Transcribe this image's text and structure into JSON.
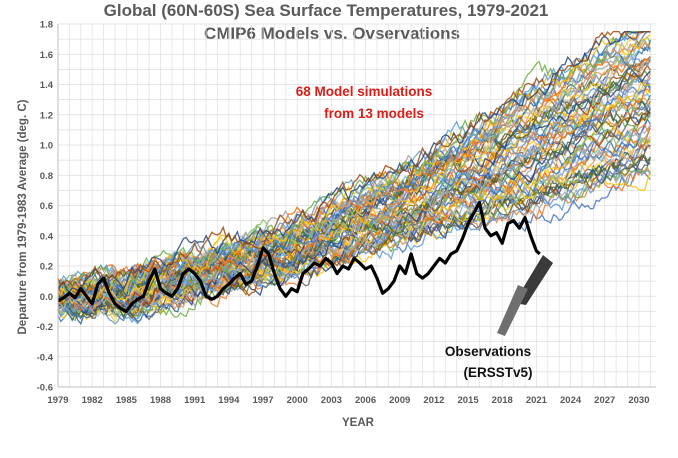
{
  "chart_data": {
    "type": "line",
    "title": "Global (60N-60S) Sea Surface Temperatures, 1979-2021",
    "subtitle": "CMIP6 Models vs. Ovservations",
    "xlabel": "YEAR",
    "ylabel": "Departure from 1979-1983 Average (deg. C)",
    "xlim": [
      1979,
      2031.5
    ],
    "ylim": [
      -0.6,
      1.8
    ],
    "x_ticks": [
      "1979",
      "1982",
      "1985",
      "1988",
      "1991",
      "1994",
      "1997",
      "2000",
      "2003",
      "2006",
      "2009",
      "2012",
      "2015",
      "2018",
      "2021",
      "2024",
      "2027",
      "2030"
    ],
    "y_ticks": [
      "1.8",
      "1.6",
      "1.4",
      "1.2",
      "1.0",
      "0.8",
      "0.6",
      "0.4",
      "0.2",
      "0.0",
      "-0.2",
      "-0.4",
      "-0.6"
    ],
    "grid": true,
    "annotations": {
      "models_line1": "68 Model simulations",
      "models_line2": "from 13 models",
      "obs_line1": "Observations",
      "obs_line2": "(ERSSTv5)"
    },
    "model_ensemble": {
      "count": 68,
      "years": [
        1979,
        1985,
        1990,
        1995,
        2000,
        2005,
        2010,
        2015,
        2020,
        2025,
        2031
      ],
      "mean": [
        0.0,
        0.02,
        0.12,
        0.22,
        0.32,
        0.48,
        0.62,
        0.78,
        0.95,
        1.12,
        1.32
      ],
      "low": [
        -0.25,
        -0.35,
        -0.3,
        -0.15,
        -0.05,
        0.1,
        0.2,
        0.3,
        0.2,
        0.3,
        0.35
      ],
      "high": [
        0.35,
        0.4,
        0.5,
        0.55,
        0.7,
        0.9,
        1.1,
        1.3,
        1.45,
        1.6,
        1.7
      ]
    },
    "series": [
      {
        "name": "Observations (ERSSTv5)",
        "color": "#000000",
        "x": [
          1979.0,
          1979.5,
          1980.0,
          1980.5,
          1981.0,
          1981.5,
          1982.0,
          1982.5,
          1983.0,
          1983.5,
          1984.0,
          1984.5,
          1985.0,
          1985.5,
          1986.0,
          1986.5,
          1987.0,
          1987.5,
          1988.0,
          1988.5,
          1989.0,
          1989.5,
          1990.0,
          1990.5,
          1991.0,
          1991.5,
          1992.0,
          1992.5,
          1993.0,
          1993.5,
          1994.0,
          1994.5,
          1995.0,
          1995.5,
          1996.0,
          1996.5,
          1997.0,
          1997.5,
          1998.0,
          1998.5,
          1999.0,
          1999.5,
          2000.0,
          2000.5,
          2001.0,
          2001.5,
          2002.0,
          2002.5,
          2003.0,
          2003.5,
          2004.0,
          2004.5,
          2005.0,
          2005.5,
          2006.0,
          2006.5,
          2007.0,
          2007.5,
          2008.0,
          2008.5,
          2009.0,
          2009.5,
          2010.0,
          2010.5,
          2011.0,
          2011.5,
          2012.0,
          2012.5,
          2013.0,
          2013.5,
          2014.0,
          2014.5,
          2015.0,
          2015.5,
          2016.0,
          2016.5,
          2017.0,
          2017.5,
          2018.0,
          2018.5,
          2019.0,
          2019.5,
          2020.0,
          2020.5,
          2021.0,
          2021.3
        ],
        "y": [
          -0.03,
          -0.01,
          0.02,
          -0.01,
          0.05,
          0.0,
          -0.05,
          0.08,
          0.12,
          0.02,
          -0.05,
          -0.08,
          -0.1,
          -0.05,
          -0.02,
          0.0,
          0.1,
          0.18,
          0.05,
          0.02,
          0.0,
          0.05,
          0.15,
          0.18,
          0.15,
          0.1,
          0.0,
          -0.02,
          0.0,
          0.05,
          0.08,
          0.12,
          0.15,
          0.08,
          0.1,
          0.2,
          0.32,
          0.28,
          0.15,
          0.05,
          0.0,
          0.05,
          0.03,
          0.15,
          0.18,
          0.22,
          0.2,
          0.25,
          0.22,
          0.15,
          0.2,
          0.18,
          0.25,
          0.22,
          0.18,
          0.2,
          0.12,
          0.02,
          0.05,
          0.1,
          0.2,
          0.15,
          0.28,
          0.15,
          0.12,
          0.15,
          0.2,
          0.25,
          0.22,
          0.28,
          0.3,
          0.38,
          0.48,
          0.55,
          0.62,
          0.45,
          0.4,
          0.42,
          0.35,
          0.48,
          0.5,
          0.45,
          0.52,
          0.4,
          0.3,
          0.28
        ]
      }
    ]
  }
}
